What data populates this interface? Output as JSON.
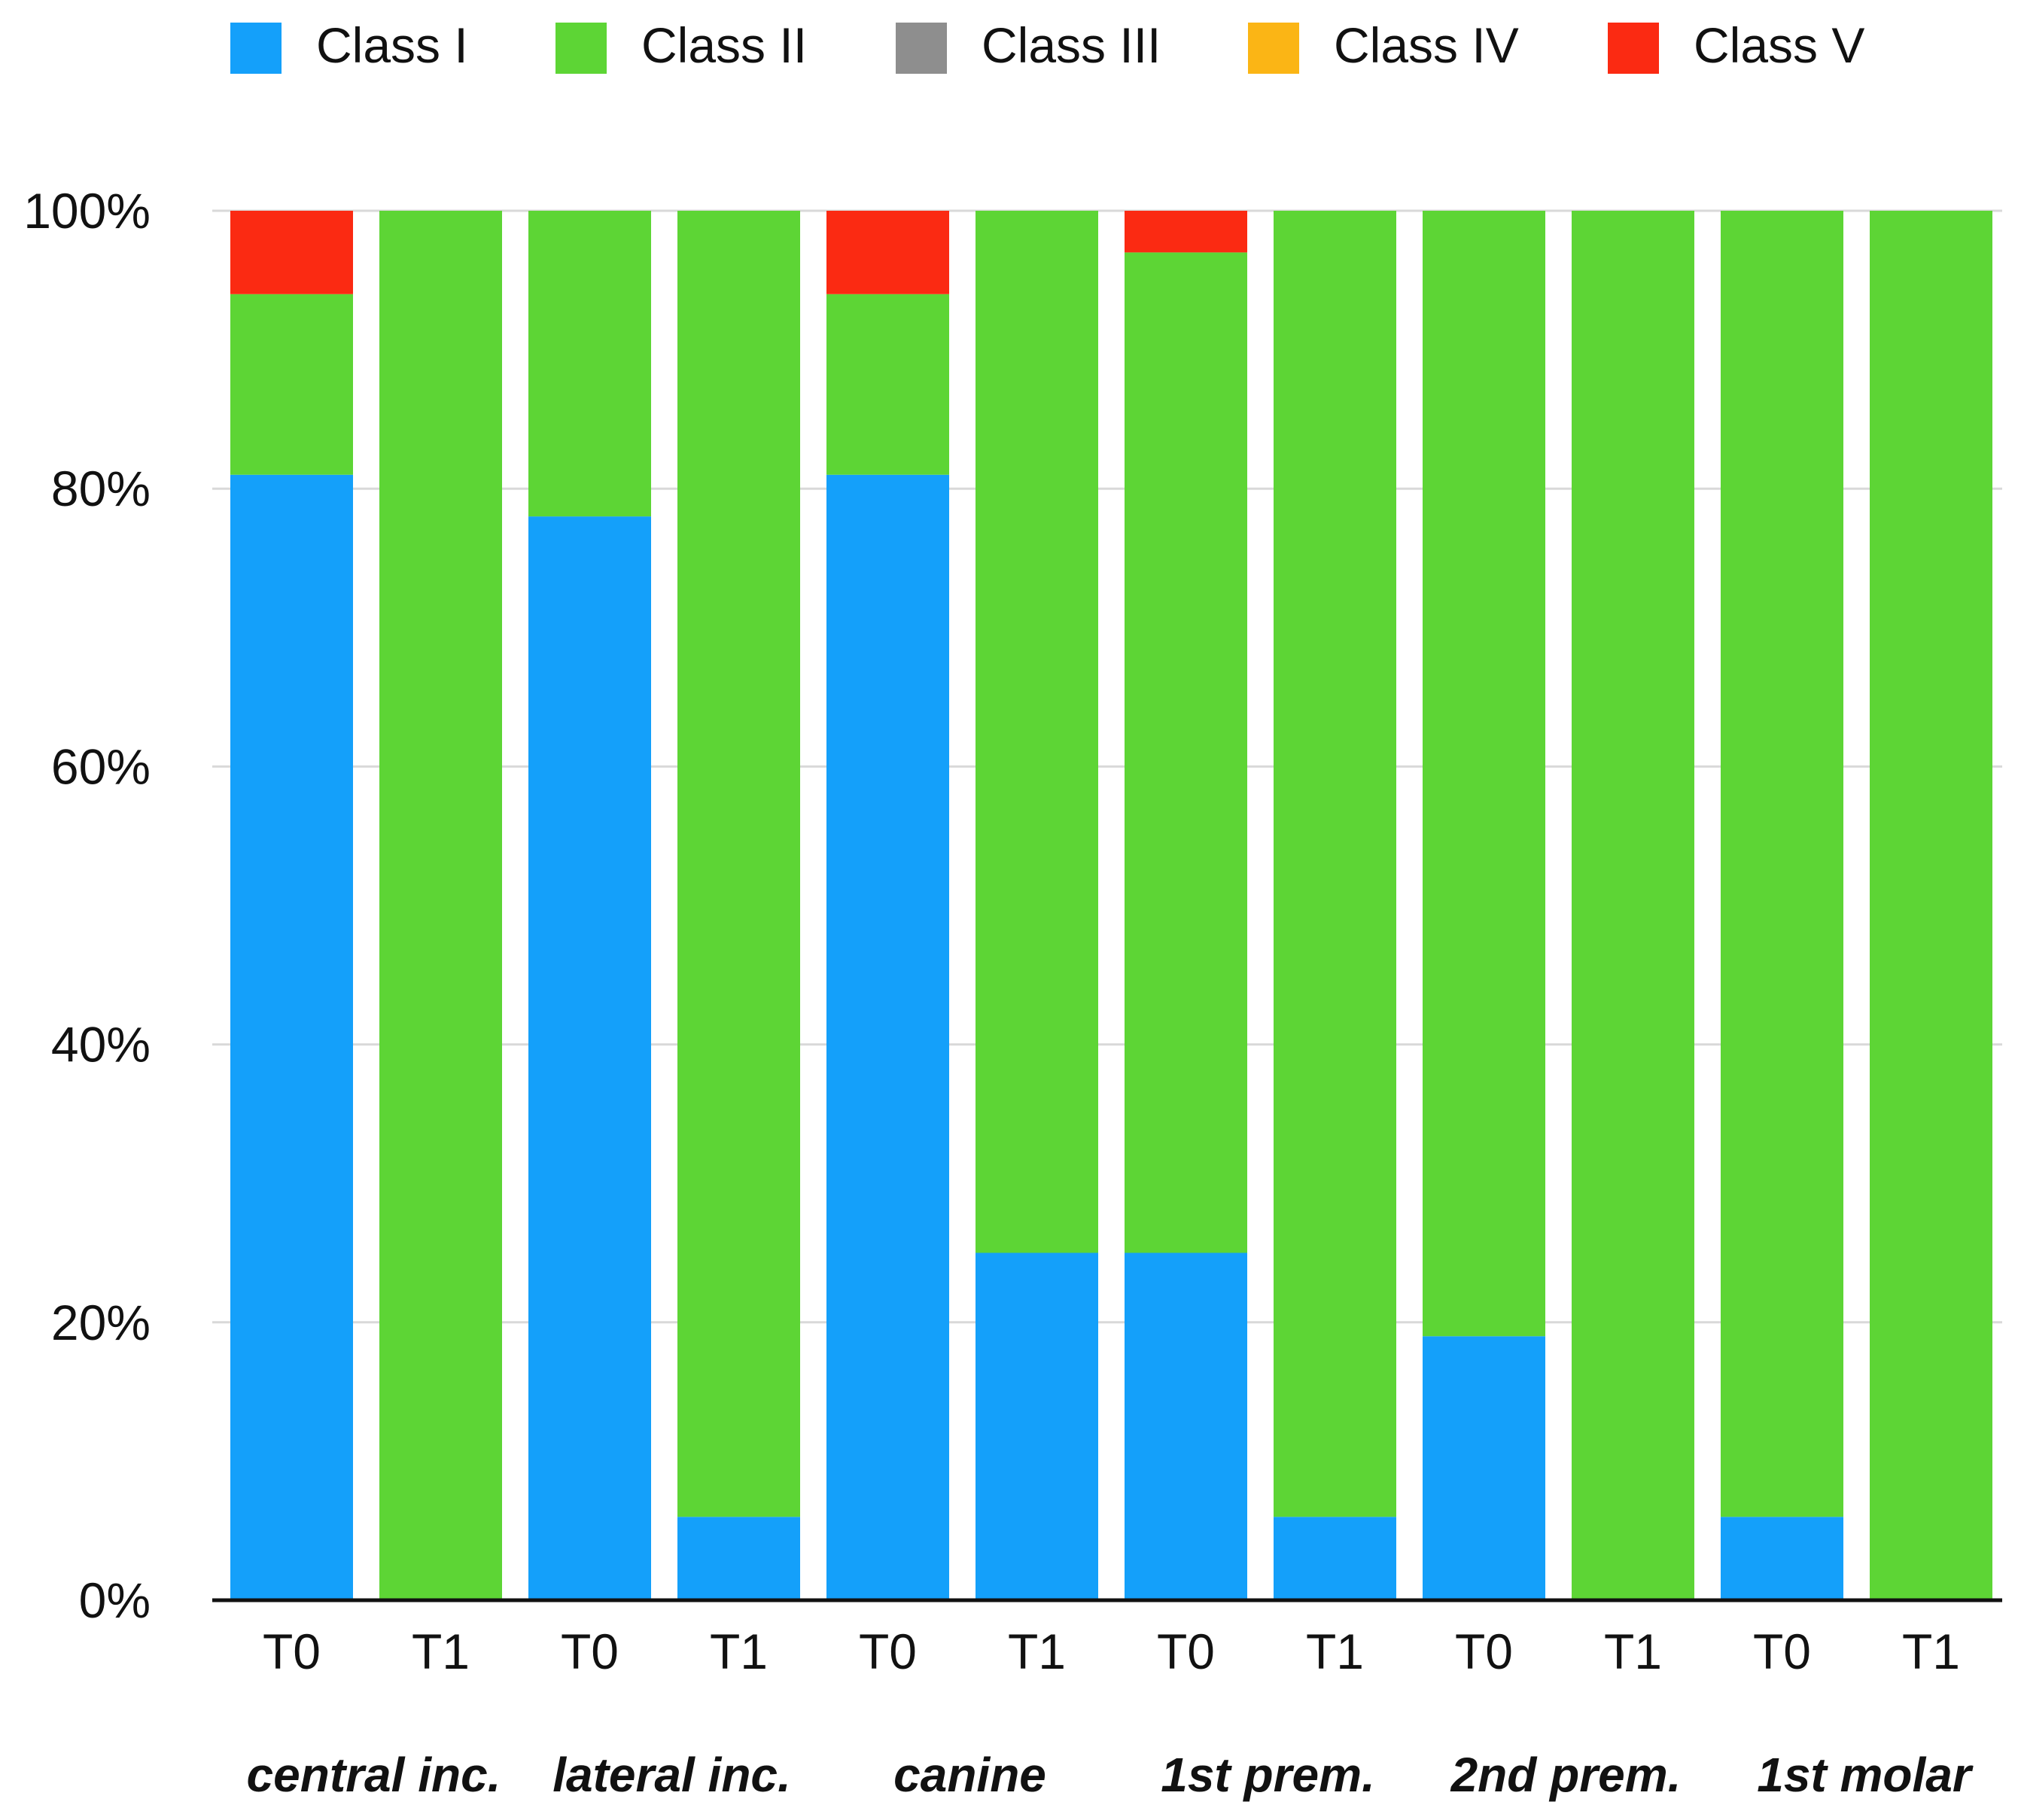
{
  "chart_data": {
    "type": "bar",
    "stacked": true,
    "title": "",
    "xlabel": "",
    "ylabel": "",
    "ylim": [
      0,
      100
    ],
    "y_ticks": [
      "0%",
      "20%",
      "40%",
      "60%",
      "80%",
      "100%"
    ],
    "grid": true,
    "legend_position": "top",
    "x_tick_labels": [
      "T0",
      "T1",
      "T0",
      "T1",
      "T0",
      "T1",
      "T0",
      "T1",
      "T0",
      "T1",
      "T0",
      "T1"
    ],
    "groups": [
      "central inc.",
      "lateral inc.",
      "canine",
      "1st prem.",
      "2nd prem.",
      "1st molar"
    ],
    "series": [
      {
        "name": "Class I",
        "color": "#14a0fa",
        "values": [
          81,
          0,
          78,
          6,
          81,
          25,
          25,
          6,
          19,
          0,
          6,
          0
        ]
      },
      {
        "name": "Class II",
        "color": "#5dd535",
        "values": [
          13,
          100,
          22,
          94,
          13,
          75,
          72,
          94,
          81,
          100,
          94,
          100
        ]
      },
      {
        "name": "Class III",
        "color": "#8e8e8e",
        "values": [
          0,
          0,
          0,
          0,
          0,
          0,
          0,
          0,
          0,
          0,
          0,
          0
        ]
      },
      {
        "name": "Class IV",
        "color": "#fbb515",
        "values": [
          0,
          0,
          0,
          0,
          0,
          0,
          0,
          0,
          0,
          0,
          0,
          0
        ]
      },
      {
        "name": "Class V",
        "color": "#fb2a12",
        "values": [
          6,
          0,
          0,
          0,
          6,
          0,
          3,
          0,
          0,
          0,
          0,
          0
        ]
      }
    ]
  }
}
